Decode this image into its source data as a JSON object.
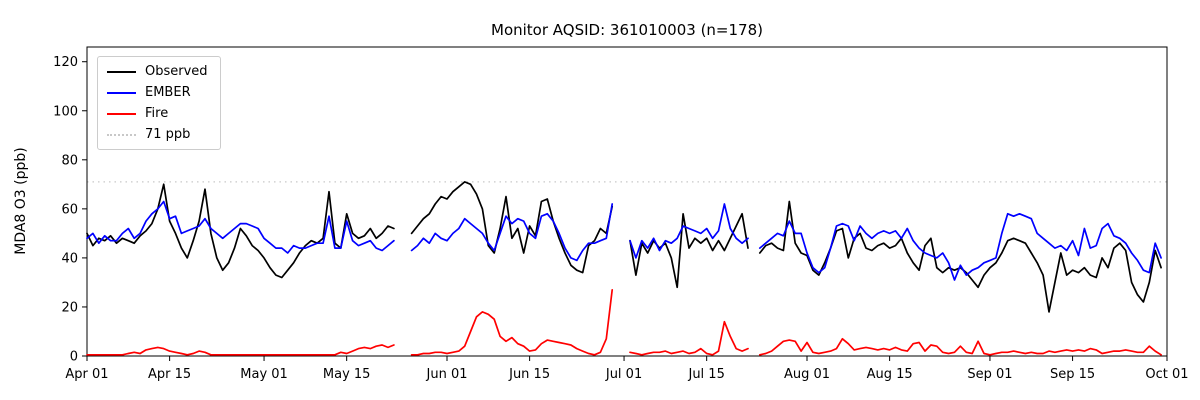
{
  "figure": {
    "background": "#ffffff"
  },
  "chart_data": {
    "type": "line",
    "title": "Monitor AQSID: 361010003 (n=178)",
    "xlabel": "",
    "ylabel": "MDA8 O3 (ppb)",
    "x_start": "Apr 01",
    "x_end": "Sep 30",
    "x_unit": "day",
    "x_span_days": 183,
    "n_points": 178,
    "missing_dates": [
      "May 24",
      "May 25",
      "Jun 30",
      "Jul 01",
      "Jul 23"
    ],
    "ylim": [
      0,
      126
    ],
    "yticks": [
      0,
      20,
      40,
      60,
      80,
      100,
      120
    ],
    "xticks": [
      {
        "day": 0,
        "label": "Apr 01"
      },
      {
        "day": 14,
        "label": "Apr 15"
      },
      {
        "day": 30,
        "label": "May 01"
      },
      {
        "day": 44,
        "label": "May 15"
      },
      {
        "day": 61,
        "label": "Jun 01"
      },
      {
        "day": 75,
        "label": "Jun 15"
      },
      {
        "day": 91,
        "label": "Jul 01"
      },
      {
        "day": 105,
        "label": "Jul 15"
      },
      {
        "day": 122,
        "label": "Aug 01"
      },
      {
        "day": 136,
        "label": "Aug 15"
      },
      {
        "day": 153,
        "label": "Sep 01"
      },
      {
        "day": 167,
        "label": "Sep 15"
      },
      {
        "day": 183,
        "label": "Oct 01"
      }
    ],
    "grid": false,
    "legend_position": "upper left",
    "threshold": {
      "value": 71,
      "label": "71 ppb",
      "color": "#c8c8c8",
      "style": "dotted"
    },
    "series": [
      {
        "name": "Observed",
        "color": "#000000",
        "style": "solid",
        "values": [
          50,
          45,
          48,
          47,
          49,
          46,
          48,
          47,
          46,
          49,
          51,
          54,
          60,
          70,
          55,
          50,
          44,
          40,
          47,
          55,
          68,
          50,
          40,
          35,
          38,
          44,
          52,
          49,
          45,
          43,
          40,
          36,
          33,
          32,
          35,
          38,
          42,
          45,
          47,
          46,
          48,
          67,
          46,
          44,
          58,
          50,
          48,
          49,
          52,
          48,
          50,
          53,
          52,
          null,
          null,
          50,
          53,
          56,
          58,
          62,
          65,
          64,
          67,
          69,
          71,
          70,
          66,
          60,
          45,
          42,
          52,
          65,
          48,
          52,
          42,
          53,
          49,
          63,
          64,
          55,
          48,
          42,
          37,
          35,
          34,
          45,
          47,
          52,
          50,
          61,
          null,
          null,
          47,
          33,
          46,
          42,
          47,
          44,
          46,
          40,
          28,
          58,
          44,
          48,
          46,
          48,
          43,
          47,
          43,
          48,
          53,
          58,
          44,
          null,
          42,
          45,
          46,
          44,
          43,
          63,
          46,
          42,
          41,
          35,
          33,
          38,
          44,
          51,
          52,
          40,
          48,
          50,
          44,
          43,
          45,
          46,
          44,
          45,
          48,
          42,
          38,
          35,
          45,
          48,
          36,
          34,
          36,
          35,
          36,
          34,
          31,
          28,
          33,
          36,
          38,
          42,
          47,
          48,
          47,
          46,
          42,
          38,
          33,
          18,
          30,
          42,
          33,
          35,
          34,
          36,
          33,
          32,
          40,
          36,
          44,
          46,
          43,
          30,
          25,
          22,
          30,
          43,
          36
        ]
      },
      {
        "name": "EMBER",
        "color": "#0000ff",
        "style": "solid",
        "values": [
          48,
          50,
          46,
          49,
          47,
          47,
          50,
          52,
          48,
          50,
          55,
          58,
          60,
          63,
          56,
          57,
          50,
          51,
          52,
          53,
          56,
          52,
          50,
          48,
          50,
          52,
          54,
          54,
          53,
          52,
          48,
          46,
          44,
          44,
          42,
          45,
          44,
          44,
          45,
          46,
          46,
          57,
          44,
          44,
          55,
          47,
          45,
          46,
          47,
          44,
          43,
          45,
          47,
          null,
          null,
          43,
          45,
          48,
          46,
          50,
          48,
          47,
          50,
          52,
          56,
          54,
          52,
          50,
          46,
          43,
          50,
          57,
          54,
          56,
          55,
          50,
          48,
          57,
          58,
          55,
          50,
          44,
          40,
          39,
          43,
          46,
          46,
          47,
          48,
          62,
          null,
          null,
          47,
          40,
          47,
          44,
          48,
          43,
          47,
          46,
          48,
          53,
          52,
          51,
          50,
          52,
          48,
          51,
          62,
          52,
          48,
          46,
          48,
          null,
          44,
          46,
          48,
          50,
          49,
          55,
          50,
          50,
          42,
          36,
          34,
          36,
          44,
          53,
          54,
          53,
          47,
          53,
          50,
          48,
          50,
          51,
          50,
          51,
          48,
          52,
          47,
          44,
          42,
          41,
          40,
          42,
          38,
          31,
          37,
          33,
          35,
          36,
          38,
          39,
          40,
          50,
          58,
          57,
          58,
          57,
          56,
          50,
          48,
          46,
          44,
          45,
          43,
          47,
          41,
          52,
          44,
          45,
          52,
          54,
          49,
          48,
          46,
          42,
          39,
          35,
          34,
          46,
          40
        ]
      },
      {
        "name": "Fire",
        "color": "#ff0000",
        "style": "solid",
        "values": [
          0.5,
          0.5,
          0.5,
          0.5,
          0.5,
          0.5,
          0.5,
          1,
          1.5,
          1,
          2.5,
          3,
          3.5,
          3,
          2,
          1.5,
          1,
          0.5,
          1,
          2,
          1.5,
          0.5,
          0.5,
          0.5,
          0.5,
          0.5,
          0.5,
          0.5,
          0.5,
          0.5,
          0.5,
          0.5,
          0.5,
          0.5,
          0.5,
          0.5,
          0.5,
          0.5,
          0.5,
          0.5,
          0.5,
          0.5,
          0.5,
          1.5,
          1,
          2,
          3,
          3.5,
          3,
          4,
          4.5,
          3.5,
          4.5,
          null,
          null,
          0.5,
          0.5,
          1,
          1,
          1.5,
          1.5,
          1,
          1.5,
          2,
          4,
          10,
          16,
          18,
          17,
          15,
          8,
          6,
          7.5,
          5,
          4,
          2,
          2.5,
          5,
          6.5,
          6,
          5.5,
          5,
          4.5,
          3,
          2,
          1,
          0.5,
          1.5,
          7,
          27,
          null,
          null,
          1.5,
          1,
          0.5,
          1,
          1.5,
          1.5,
          2,
          1,
          1.5,
          2,
          1,
          1.5,
          3,
          1,
          0.5,
          2,
          14,
          8,
          3,
          2,
          3,
          null,
          0.5,
          1,
          2,
          4,
          6,
          6.5,
          6,
          2,
          5.5,
          1.5,
          1,
          1.5,
          2,
          3,
          7,
          5,
          2.5,
          3,
          3.5,
          3,
          2.5,
          3,
          2.5,
          3.5,
          2.5,
          2,
          5,
          5.5,
          2,
          4.5,
          4,
          1.5,
          1,
          1.5,
          4,
          1.5,
          1,
          6,
          1,
          0.5,
          1,
          1.5,
          1.5,
          2,
          1.5,
          1,
          1.5,
          1,
          1,
          2,
          1.5,
          2,
          2.5,
          2,
          2.5,
          2,
          3,
          2.5,
          1,
          1.5,
          2,
          2,
          2.5,
          2,
          1.5,
          1.5,
          4,
          2,
          0.5
        ]
      }
    ],
    "legend": [
      {
        "label": "Observed",
        "color": "#000000",
        "style": "solid"
      },
      {
        "label": "EMBER",
        "color": "#0000ff",
        "style": "solid"
      },
      {
        "label": "Fire",
        "color": "#ff0000",
        "style": "solid"
      },
      {
        "label": "71 ppb",
        "color": "#c8c8c8",
        "style": "dotted"
      }
    ]
  }
}
